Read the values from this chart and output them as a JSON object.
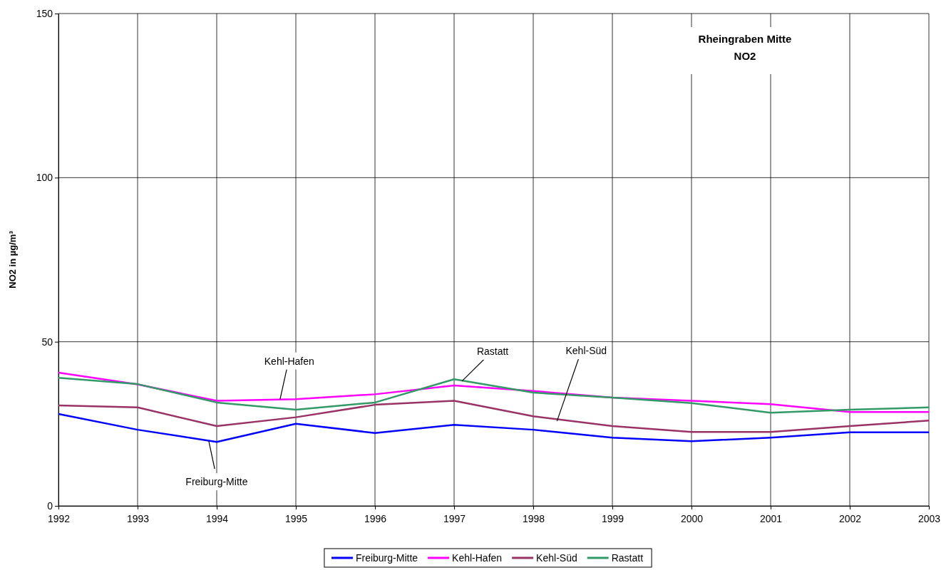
{
  "chart_data": {
    "type": "line",
    "title": "Rheingraben Mitte",
    "subtitle": "NO2",
    "ylabel": "NO2 in µg/m³",
    "x": [
      1992,
      1993,
      1994,
      1995,
      1996,
      1997,
      1998,
      1999,
      2000,
      2001,
      2002,
      2003
    ],
    "xlim": [
      1992,
      2003
    ],
    "xticks": [
      1992,
      1993,
      1994,
      1995,
      1996,
      1997,
      1998,
      1999,
      2000,
      2001,
      2002,
      2003
    ],
    "ylim": [
      0,
      150
    ],
    "yticks": [
      0,
      50,
      100,
      150
    ],
    "grid": true,
    "legend": "bottom",
    "marker": "none",
    "line_style": "solid",
    "series": [
      {
        "name": "Freiburg-Mitte",
        "color": "#0000ff",
        "values": [
          28,
          23.2,
          19.5,
          25,
          22.2,
          24.7,
          23.2,
          20.8,
          19.7,
          20.8,
          22.4,
          22.4
        ]
      },
      {
        "name": "Kehl-Hafen",
        "color": "#ff00ff",
        "values": [
          40.6,
          37,
          32,
          32.5,
          34,
          36.7,
          35,
          33,
          32,
          31,
          28.6,
          28.6
        ]
      },
      {
        "name": "Kehl-Süd",
        "color": "#993366",
        "values": [
          30.6,
          30,
          24.3,
          27,
          30.8,
          32,
          27.3,
          24.3,
          22.5,
          22.5,
          24.3,
          26
        ]
      },
      {
        "name": "Rastatt",
        "color": "#339966",
        "values": [
          39,
          37.1,
          31.5,
          29.3,
          31.5,
          38.6,
          34.5,
          33,
          31.3,
          28.4,
          29.3,
          30
        ]
      }
    ],
    "annotations": [
      {
        "text": "Kehl-Hafen",
        "x": 1994.8,
        "y": 32.4
      },
      {
        "text": "Rastatt",
        "x": 1997.1,
        "y": 38
      },
      {
        "text": "Kehl-Süd",
        "x": 1998.3,
        "y": 25.8
      },
      {
        "text": "Freiburg-Mitte",
        "x": 1993.9,
        "y": 19.7
      }
    ]
  }
}
